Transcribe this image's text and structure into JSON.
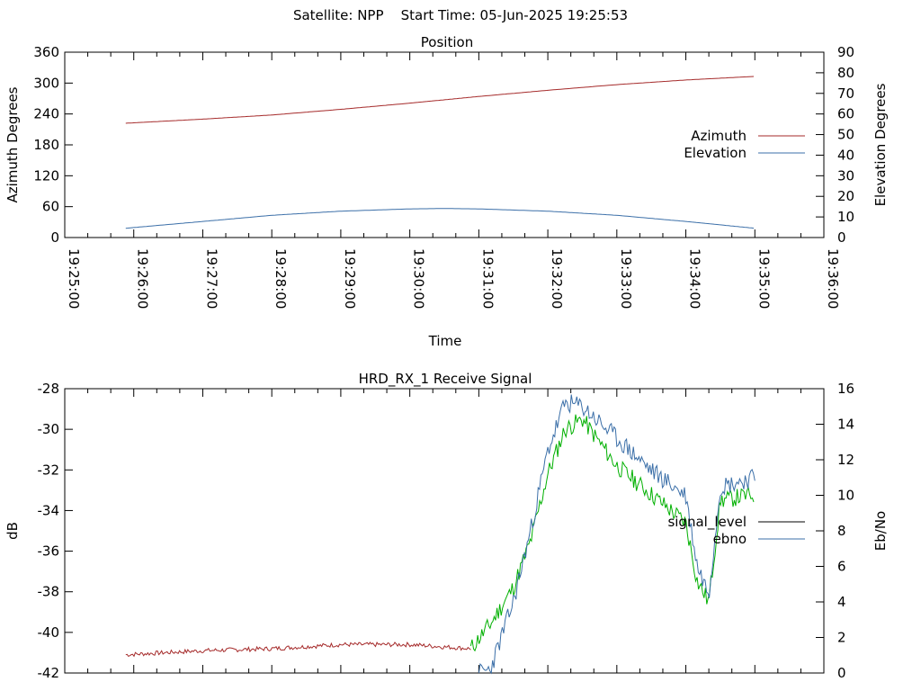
{
  "header": {
    "text": "Satellite: NPP    Start Time: 05-Jun-2025 19:25:53"
  },
  "colors": {
    "azimuth": "#a52a2a",
    "elevation": "#3b6fa8",
    "signal_level_before": "#a52a2a",
    "signal_level_after": "#00b000",
    "ebno": "#3b6fa8",
    "signal_level_legend": "#000000"
  },
  "chart_data": [
    {
      "type": "line",
      "title": "Position",
      "xlabel": "Time",
      "ylabel": "Azimuth Degrees",
      "y2label": "Elevation Degrees",
      "xlim": [
        "19:25:00",
        "19:36:00"
      ],
      "x_ticks": [
        "19:25:00",
        "19:26:00",
        "19:27:00",
        "19:28:00",
        "19:29:00",
        "19:30:00",
        "19:31:00",
        "19:32:00",
        "19:33:00",
        "19:34:00",
        "19:35:00",
        "19:36:00"
      ],
      "ylim": [
        0,
        360
      ],
      "y_ticks": [
        "0",
        "60",
        "120",
        "180",
        "240",
        "300",
        "360"
      ],
      "y2lim": [
        0,
        90
      ],
      "y2_ticks": [
        "0",
        "10",
        "20",
        "30",
        "40",
        "50",
        "60",
        "70",
        "80",
        "90"
      ],
      "legend_position": "right",
      "series": [
        {
          "name": "Azimuth",
          "axis": "y",
          "x": [
            "19:25:53",
            "19:27:00",
            "19:28:00",
            "19:29:00",
            "19:30:00",
            "19:31:00",
            "19:32:00",
            "19:33:00",
            "19:34:00",
            "19:35:00"
          ],
          "values": [
            222,
            230,
            238,
            249,
            261,
            274,
            286,
            297,
            306,
            313
          ]
        },
        {
          "name": "Elevation",
          "axis": "y2",
          "x": [
            "19:25:53",
            "19:27:00",
            "19:28:00",
            "19:29:00",
            "19:30:00",
            "19:30:30",
            "19:31:00",
            "19:32:00",
            "19:33:00",
            "19:34:00",
            "19:35:00"
          ],
          "values": [
            4.5,
            7.8,
            10.8,
            12.8,
            13.9,
            14.1,
            13.9,
            12.8,
            10.8,
            7.8,
            4.5
          ]
        }
      ]
    },
    {
      "type": "line",
      "title": "HRD_RX_1 Receive Signal",
      "xlabel": "",
      "ylabel": "dB",
      "y2label": "Eb/No",
      "xlim": [
        "19:25:00",
        "19:36:00"
      ],
      "ylim": [
        -42,
        -28
      ],
      "y_ticks": [
        "-42",
        "-40",
        "-38",
        "-36",
        "-34",
        "-32",
        "-30",
        "-28"
      ],
      "y2lim": [
        0,
        16
      ],
      "y2_ticks": [
        "0",
        "2",
        "4",
        "6",
        "8",
        "10",
        "12",
        "14",
        "16"
      ],
      "legend_position": "right",
      "series": [
        {
          "name": "signal_level",
          "axis": "y",
          "x": [
            "19:25:53",
            "19:27:00",
            "19:28:00",
            "19:29:00",
            "19:30:00",
            "19:30:53",
            "19:31:10",
            "19:31:30",
            "19:31:45",
            "19:32:00",
            "19:32:15",
            "19:32:30",
            "19:33:00",
            "19:33:30",
            "19:34:00",
            "19:34:10",
            "19:34:20",
            "19:34:30",
            "19:35:00"
          ],
          "values": [
            -41.1,
            -40.9,
            -40.8,
            -40.6,
            -40.6,
            -40.8,
            -39.6,
            -37.8,
            -35.5,
            -32.2,
            -30.0,
            -29.5,
            -31.8,
            -33.2,
            -34.6,
            -37.5,
            -38.5,
            -33.5,
            -33.2
          ]
        },
        {
          "name": "ebno",
          "axis": "y2",
          "x": [
            "19:31:00",
            "19:31:10",
            "19:31:30",
            "19:31:45",
            "19:32:00",
            "19:32:15",
            "19:32:30",
            "19:33:00",
            "19:33:30",
            "19:34:00",
            "19:34:10",
            "19:34:20",
            "19:34:30",
            "19:35:00"
          ],
          "values": [
            0,
            0.2,
            4.0,
            8.0,
            12.5,
            15.2,
            15.0,
            13.2,
            11.4,
            10.0,
            6.0,
            4.5,
            10.5,
            11.0
          ]
        }
      ]
    }
  ]
}
